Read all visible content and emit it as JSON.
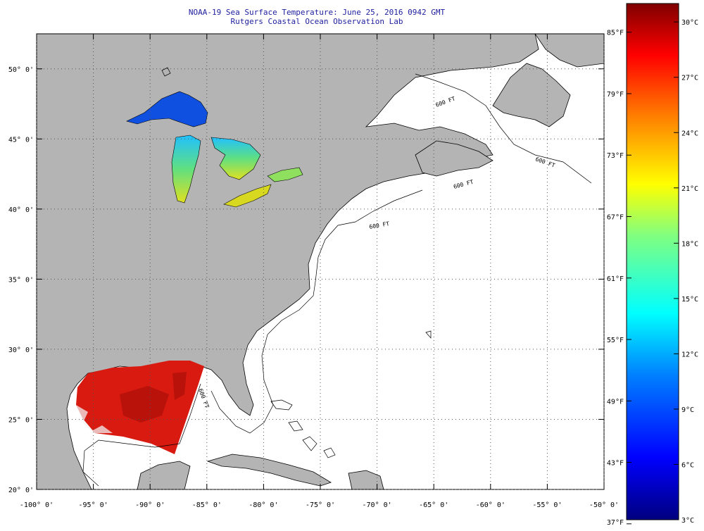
{
  "title": {
    "line1": "NOAA-19 Sea Surface Temperature:  June 25, 2016 0942 GMT",
    "line2": "Rutgers Coastal Ocean Observation Lab"
  },
  "axes": {
    "lat_labels": [
      "50° 0'",
      "45° 0'",
      "40° 0'",
      "35° 0'",
      "30° 0'",
      "25° 0'",
      "20° 0'"
    ],
    "lat_values": [
      50,
      45,
      40,
      35,
      30,
      25,
      20
    ],
    "lon_labels": [
      "-100° 0'",
      "-95° 0'",
      "-90° 0'",
      "-85° 0'",
      "-80° 0'",
      "-75° 0'",
      "-70° 0'",
      "-65° 0'",
      "-60° 0'",
      "-55° 0'",
      "-50° 0'"
    ],
    "lon_values": [
      -100,
      -95,
      -90,
      -85,
      -80,
      -75,
      -70,
      -65,
      -60,
      -55,
      -50
    ],
    "lat_range": [
      20,
      52.5
    ],
    "lon_range": [
      -100,
      -50
    ],
    "grid": "dotted"
  },
  "contour_labels": [
    "600 FT",
    "600 FT",
    "600 FT",
    "600 FT",
    "600 FT"
  ],
  "colorbar": {
    "celsius_labels": [
      "30°C",
      "27°C",
      "24°C",
      "21°C",
      "18°C",
      "15°C",
      "12°C",
      "9°C",
      "6°C",
      "3°C"
    ],
    "fahrenheit_labels": [
      "85°F",
      "79°F",
      "73°F",
      "67°F",
      "61°F",
      "55°F",
      "49°F",
      "43°F",
      "37°F"
    ],
    "range_c": [
      3,
      31
    ],
    "colors": [
      "#00007f",
      "#0000ff",
      "#0080ff",
      "#00ffff",
      "#80ff80",
      "#ffff00",
      "#ff8000",
      "#ff0000",
      "#7f0000"
    ]
  },
  "colors": {
    "land": "#b4b4b4",
    "ocean": "#ffffff",
    "gulf_sst": "#d81a10",
    "grid": "#555555",
    "title": "#2020a0"
  }
}
